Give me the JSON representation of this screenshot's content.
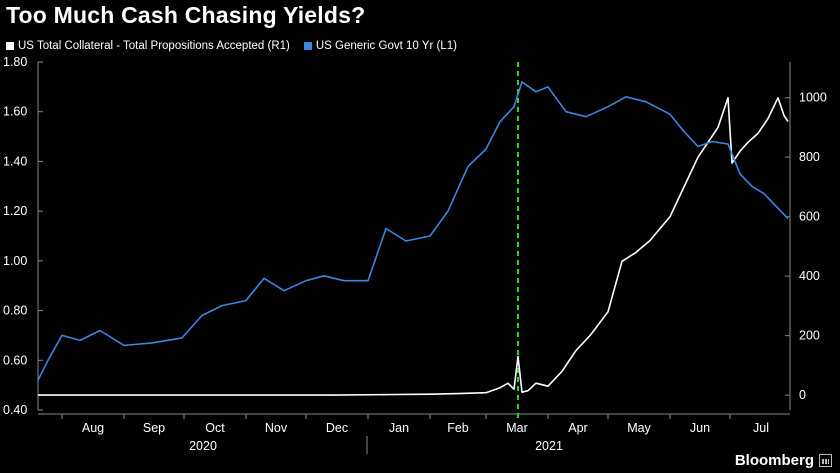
{
  "title": "Too Much Cash Chasing Yields?",
  "brand": "Bloomberg",
  "colors": {
    "background": "#000000",
    "collateral": "#ffffff",
    "yield": "#3a87e0",
    "marker": "#22dd22"
  },
  "chart_data": {
    "type": "line",
    "title": "Too Much Cash Chasing Yields?",
    "grid": false,
    "legend_position": "top-left",
    "x_labels": [
      "Aug",
      "Sep",
      "Oct",
      "Nov",
      "Dec",
      "Jan",
      "Feb",
      "Mar",
      "Apr",
      "May",
      "Jun",
      "Jul"
    ],
    "year_labels": [
      "2020",
      "2021"
    ],
    "x_range": [
      "2020-07-20",
      "2021-07-31"
    ],
    "marker_line": {
      "x": "2021-03-17",
      "style": "dashed"
    },
    "axes": {
      "left": {
        "ticks": [
          "1.80",
          "1.60",
          "1.40",
          "1.20",
          "1.00",
          "0.80",
          "0.60",
          "0.40"
        ],
        "range": [
          0.4,
          1.8
        ]
      },
      "right": {
        "ticks": [
          "1000",
          "800",
          "600",
          "400",
          "200",
          "0"
        ],
        "range": [
          -50,
          1120
        ]
      }
    },
    "series": [
      {
        "name": "US Total Collateral - Total Propositions Accepted (R1)",
        "axis": "right",
        "color": "#ffffff",
        "x": [
          "2020-07-20",
          "2020-08-15",
          "2020-09-15",
          "2020-10-15",
          "2020-11-15",
          "2020-12-15",
          "2021-01-15",
          "2021-02-01",
          "2021-02-15",
          "2021-03-01",
          "2021-03-08",
          "2021-03-12",
          "2021-03-15",
          "2021-03-17",
          "2021-03-19",
          "2021-03-22",
          "2021-03-26",
          "2021-04-01",
          "2021-04-08",
          "2021-04-15",
          "2021-04-22",
          "2021-05-01",
          "2021-05-08",
          "2021-05-15",
          "2021-05-22",
          "2021-06-01",
          "2021-06-08",
          "2021-06-15",
          "2021-06-20",
          "2021-06-25",
          "2021-06-30",
          "2021-07-02",
          "2021-07-06",
          "2021-07-10",
          "2021-07-15",
          "2021-07-20",
          "2021-07-25",
          "2021-07-28",
          "2021-07-30"
        ],
        "values": [
          0,
          0,
          0,
          0,
          0,
          0,
          2,
          3,
          5,
          8,
          25,
          40,
          20,
          130,
          10,
          15,
          40,
          30,
          80,
          150,
          200,
          280,
          450,
          480,
          520,
          600,
          700,
          800,
          850,
          900,
          1000,
          780,
          820,
          850,
          880,
          930,
          1000,
          940,
          920
        ]
      },
      {
        "name": "US Generic Govt 10 Yr (L1)",
        "axis": "left",
        "color": "#3a87e0",
        "x": [
          "2020-07-20",
          "2020-07-25",
          "2020-08-01",
          "2020-08-10",
          "2020-08-20",
          "2020-09-01",
          "2020-09-15",
          "2020-09-30",
          "2020-10-10",
          "2020-10-20",
          "2020-11-01",
          "2020-11-10",
          "2020-11-20",
          "2020-12-01",
          "2020-12-10",
          "2020-12-20",
          "2021-01-01",
          "2021-01-10",
          "2021-01-20",
          "2021-02-01",
          "2021-02-10",
          "2021-02-20",
          "2021-03-01",
          "2021-03-08",
          "2021-03-15",
          "2021-03-19",
          "2021-03-26",
          "2021-04-01",
          "2021-04-10",
          "2021-04-20",
          "2021-05-01",
          "2021-05-10",
          "2021-05-20",
          "2021-06-01",
          "2021-06-08",
          "2021-06-15",
          "2021-06-22",
          "2021-06-30",
          "2021-07-06",
          "2021-07-12",
          "2021-07-18",
          "2021-07-24",
          "2021-07-30"
        ],
        "values": [
          0.52,
          0.6,
          0.7,
          0.68,
          0.72,
          0.66,
          0.67,
          0.69,
          0.78,
          0.82,
          0.84,
          0.93,
          0.88,
          0.92,
          0.94,
          0.92,
          0.92,
          1.13,
          1.08,
          1.1,
          1.2,
          1.38,
          1.45,
          1.56,
          1.62,
          1.72,
          1.68,
          1.7,
          1.6,
          1.58,
          1.62,
          1.66,
          1.64,
          1.59,
          1.52,
          1.46,
          1.48,
          1.47,
          1.35,
          1.3,
          1.27,
          1.22,
          1.17
        ]
      }
    ]
  }
}
